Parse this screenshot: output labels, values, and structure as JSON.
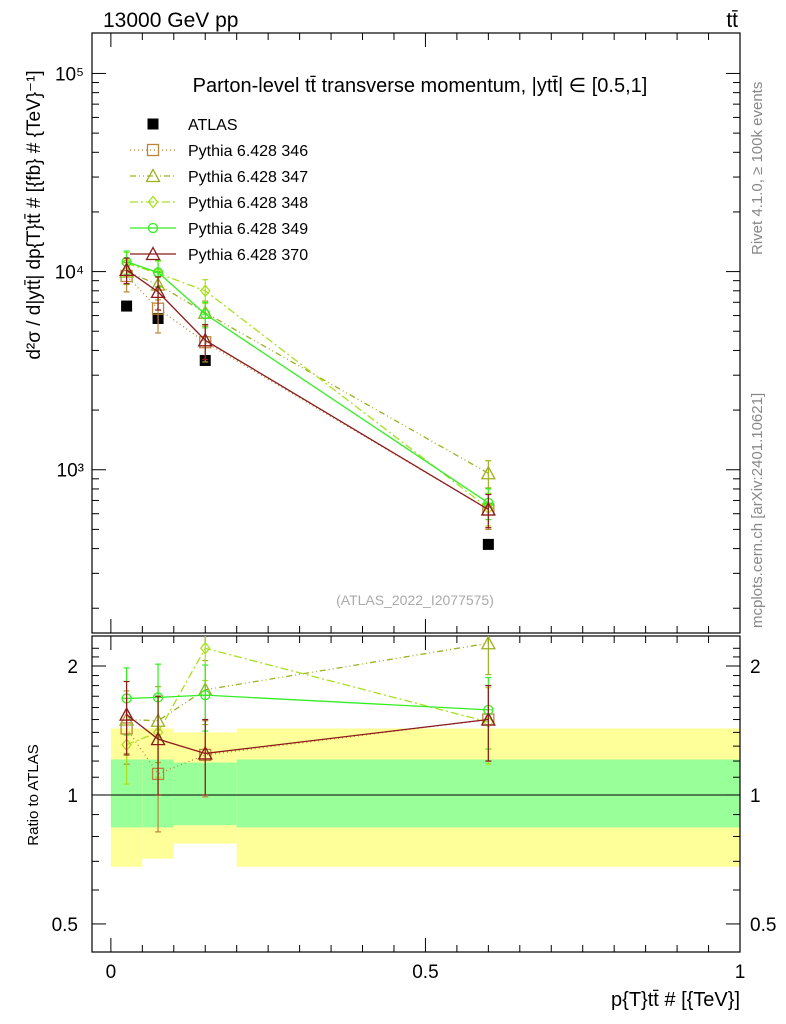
{
  "header": {
    "left_label": "13000 GeV pp",
    "right_label": "tt̄"
  },
  "side_labels": {
    "rivet": "Rivet 4.1.0, ≥ 100k events",
    "mcplots": "mcplots.cern.ch [arXiv:2401.10621]"
  },
  "chart_data": [
    {
      "type": "scatter",
      "panel": "main",
      "title": "Parton-level tt̄ transverse momentum, |ytt̄| ∈ [0.5,1]",
      "ylabel": "d²σ / d|ytt̄| dp{T}tt̄ # [{fb} # {TeV}⁻¹]",
      "xlabel": "",
      "yscale": "log",
      "xlim": [
        -0.03,
        1.0
      ],
      "ylim": [
        150,
        160000
      ],
      "yticks": [
        {
          "value": 1000,
          "label": "10³"
        },
        {
          "value": 10000,
          "label": "10⁴"
        },
        {
          "value": 100000,
          "label": "10⁵"
        }
      ],
      "watermark": "(ATLAS_2022_I2077575)",
      "legend": [
        "ATLAS",
        "Pythia 6.428 346",
        "Pythia 6.428 347",
        "Pythia 6.428 348",
        "Pythia 6.428 349",
        "Pythia 6.428 370"
      ],
      "series": [
        {
          "name": "ATLAS",
          "color": "#000000",
          "marker": "square-filled",
          "dash": "none",
          "x": [
            0.025,
            0.075,
            0.15,
            0.6
          ],
          "y": [
            6700,
            5800,
            3560,
            420
          ],
          "err": [
            0,
            0,
            0,
            0
          ]
        },
        {
          "name": "Pythia 6.428 346",
          "color": "#b8863b",
          "marker": "square",
          "dash": "1 3",
          "x": [
            0.025,
            0.075,
            0.15,
            0.6
          ],
          "y": [
            9500,
            6500,
            4400,
            630
          ],
          "err": [
            1600,
            1600,
            900,
            130
          ]
        },
        {
          "name": "Pythia 6.428 347",
          "color": "#9cb020",
          "marker": "triangle",
          "dash": "6 3 1 3 1 3",
          "x": [
            0.025,
            0.075,
            0.15,
            0.6
          ],
          "y": [
            10000,
            8600,
            6200,
            960
          ],
          "err": [
            1400,
            1400,
            900,
            150
          ]
        },
        {
          "name": "Pythia 6.428 348",
          "color": "#a8e020",
          "marker": "diamond",
          "dash": "8 3 2 3",
          "x": [
            0.025,
            0.075,
            0.15,
            0.6
          ],
          "y": [
            11000,
            9800,
            8000,
            640
          ],
          "err": [
            1500,
            1500,
            1100,
            120
          ]
        },
        {
          "name": "Pythia 6.428 349",
          "color": "#33ee22",
          "marker": "circle-cross",
          "dash": "none",
          "x": [
            0.025,
            0.075,
            0.15,
            0.6
          ],
          "y": [
            11200,
            9900,
            6100,
            680
          ],
          "err": [
            1500,
            1500,
            900,
            120
          ]
        },
        {
          "name": "Pythia 6.428 370",
          "color": "#8b1a1a",
          "marker": "triangle",
          "dash": "none",
          "x": [
            0.025,
            0.075,
            0.15,
            0.6
          ],
          "y": [
            10200,
            7900,
            4500,
            630
          ],
          "err": [
            1500,
            1500,
            900,
            120
          ]
        }
      ]
    },
    {
      "type": "scatter",
      "panel": "ratio",
      "ylabel": "Ratio to ATLAS",
      "xlabel": "p{T}tt̄ # [{TeV}]",
      "yscale": "log",
      "xlim": [
        -0.03,
        1.0
      ],
      "ylim": [
        0.43,
        2.35
      ],
      "yticks": [
        {
          "value": 0.5,
          "label": "0.5"
        },
        {
          "value": 1,
          "label": "1"
        },
        {
          "value": 2,
          "label": "2"
        }
      ],
      "xticks": [
        {
          "value": 0,
          "label": "0"
        },
        {
          "value": 0.5,
          "label": "0.5"
        },
        {
          "value": 1,
          "label": "1"
        }
      ],
      "bands": [
        {
          "xmin": 0.0,
          "xmax": 0.05,
          "yellow": [
            0.68,
            1.43
          ],
          "green": [
            0.84,
            1.21
          ]
        },
        {
          "xmin": 0.05,
          "xmax": 0.1,
          "yellow": [
            0.71,
            1.43
          ],
          "green": [
            0.84,
            1.21
          ]
        },
        {
          "xmin": 0.1,
          "xmax": 0.2,
          "yellow": [
            0.77,
            1.4
          ],
          "green": [
            0.85,
            1.19
          ]
        },
        {
          "xmin": 0.2,
          "xmax": 1.0,
          "yellow": [
            0.68,
            1.43
          ],
          "green": [
            0.84,
            1.21
          ]
        }
      ],
      "series": [
        {
          "name": "Pythia 6.428 346",
          "color": "#b8863b",
          "marker": "square",
          "dash": "1 3",
          "x": [
            0.025,
            0.075,
            0.15,
            0.6
          ],
          "y": [
            1.43,
            1.12,
            1.24,
            1.5
          ],
          "err": [
            0.25,
            0.3,
            0.25,
            0.3
          ]
        },
        {
          "name": "Pythia 6.428 347",
          "color": "#9cb020",
          "marker": "triangle",
          "dash": "6 3 1 3 1 3",
          "x": [
            0.025,
            0.075,
            0.15,
            0.6
          ],
          "y": [
            1.5,
            1.49,
            1.76,
            2.26
          ],
          "err": [
            0.25,
            0.3,
            0.3,
            0.35
          ]
        },
        {
          "name": "Pythia 6.428 348",
          "color": "#a8e020",
          "marker": "diamond",
          "dash": "8 3 2 3",
          "x": [
            0.025,
            0.075,
            0.15,
            0.6
          ],
          "y": [
            1.31,
            1.4,
            2.2,
            1.48
          ],
          "err": [
            0.25,
            0.3,
            0.35,
            0.3
          ]
        },
        {
          "name": "Pythia 6.428 349",
          "color": "#33ee22",
          "marker": "circle-cross",
          "dash": "none",
          "x": [
            0.025,
            0.075,
            0.15,
            0.6
          ],
          "y": [
            1.68,
            1.69,
            1.71,
            1.58
          ],
          "err": [
            0.3,
            0.33,
            0.3,
            0.3
          ]
        },
        {
          "name": "Pythia 6.428 370",
          "color": "#8b1a1a",
          "marker": "triangle",
          "dash": "none",
          "x": [
            0.025,
            0.075,
            0.15,
            0.6
          ],
          "y": [
            1.54,
            1.35,
            1.25,
            1.5
          ],
          "err": [
            0.3,
            0.35,
            0.25,
            0.3
          ]
        }
      ]
    }
  ]
}
